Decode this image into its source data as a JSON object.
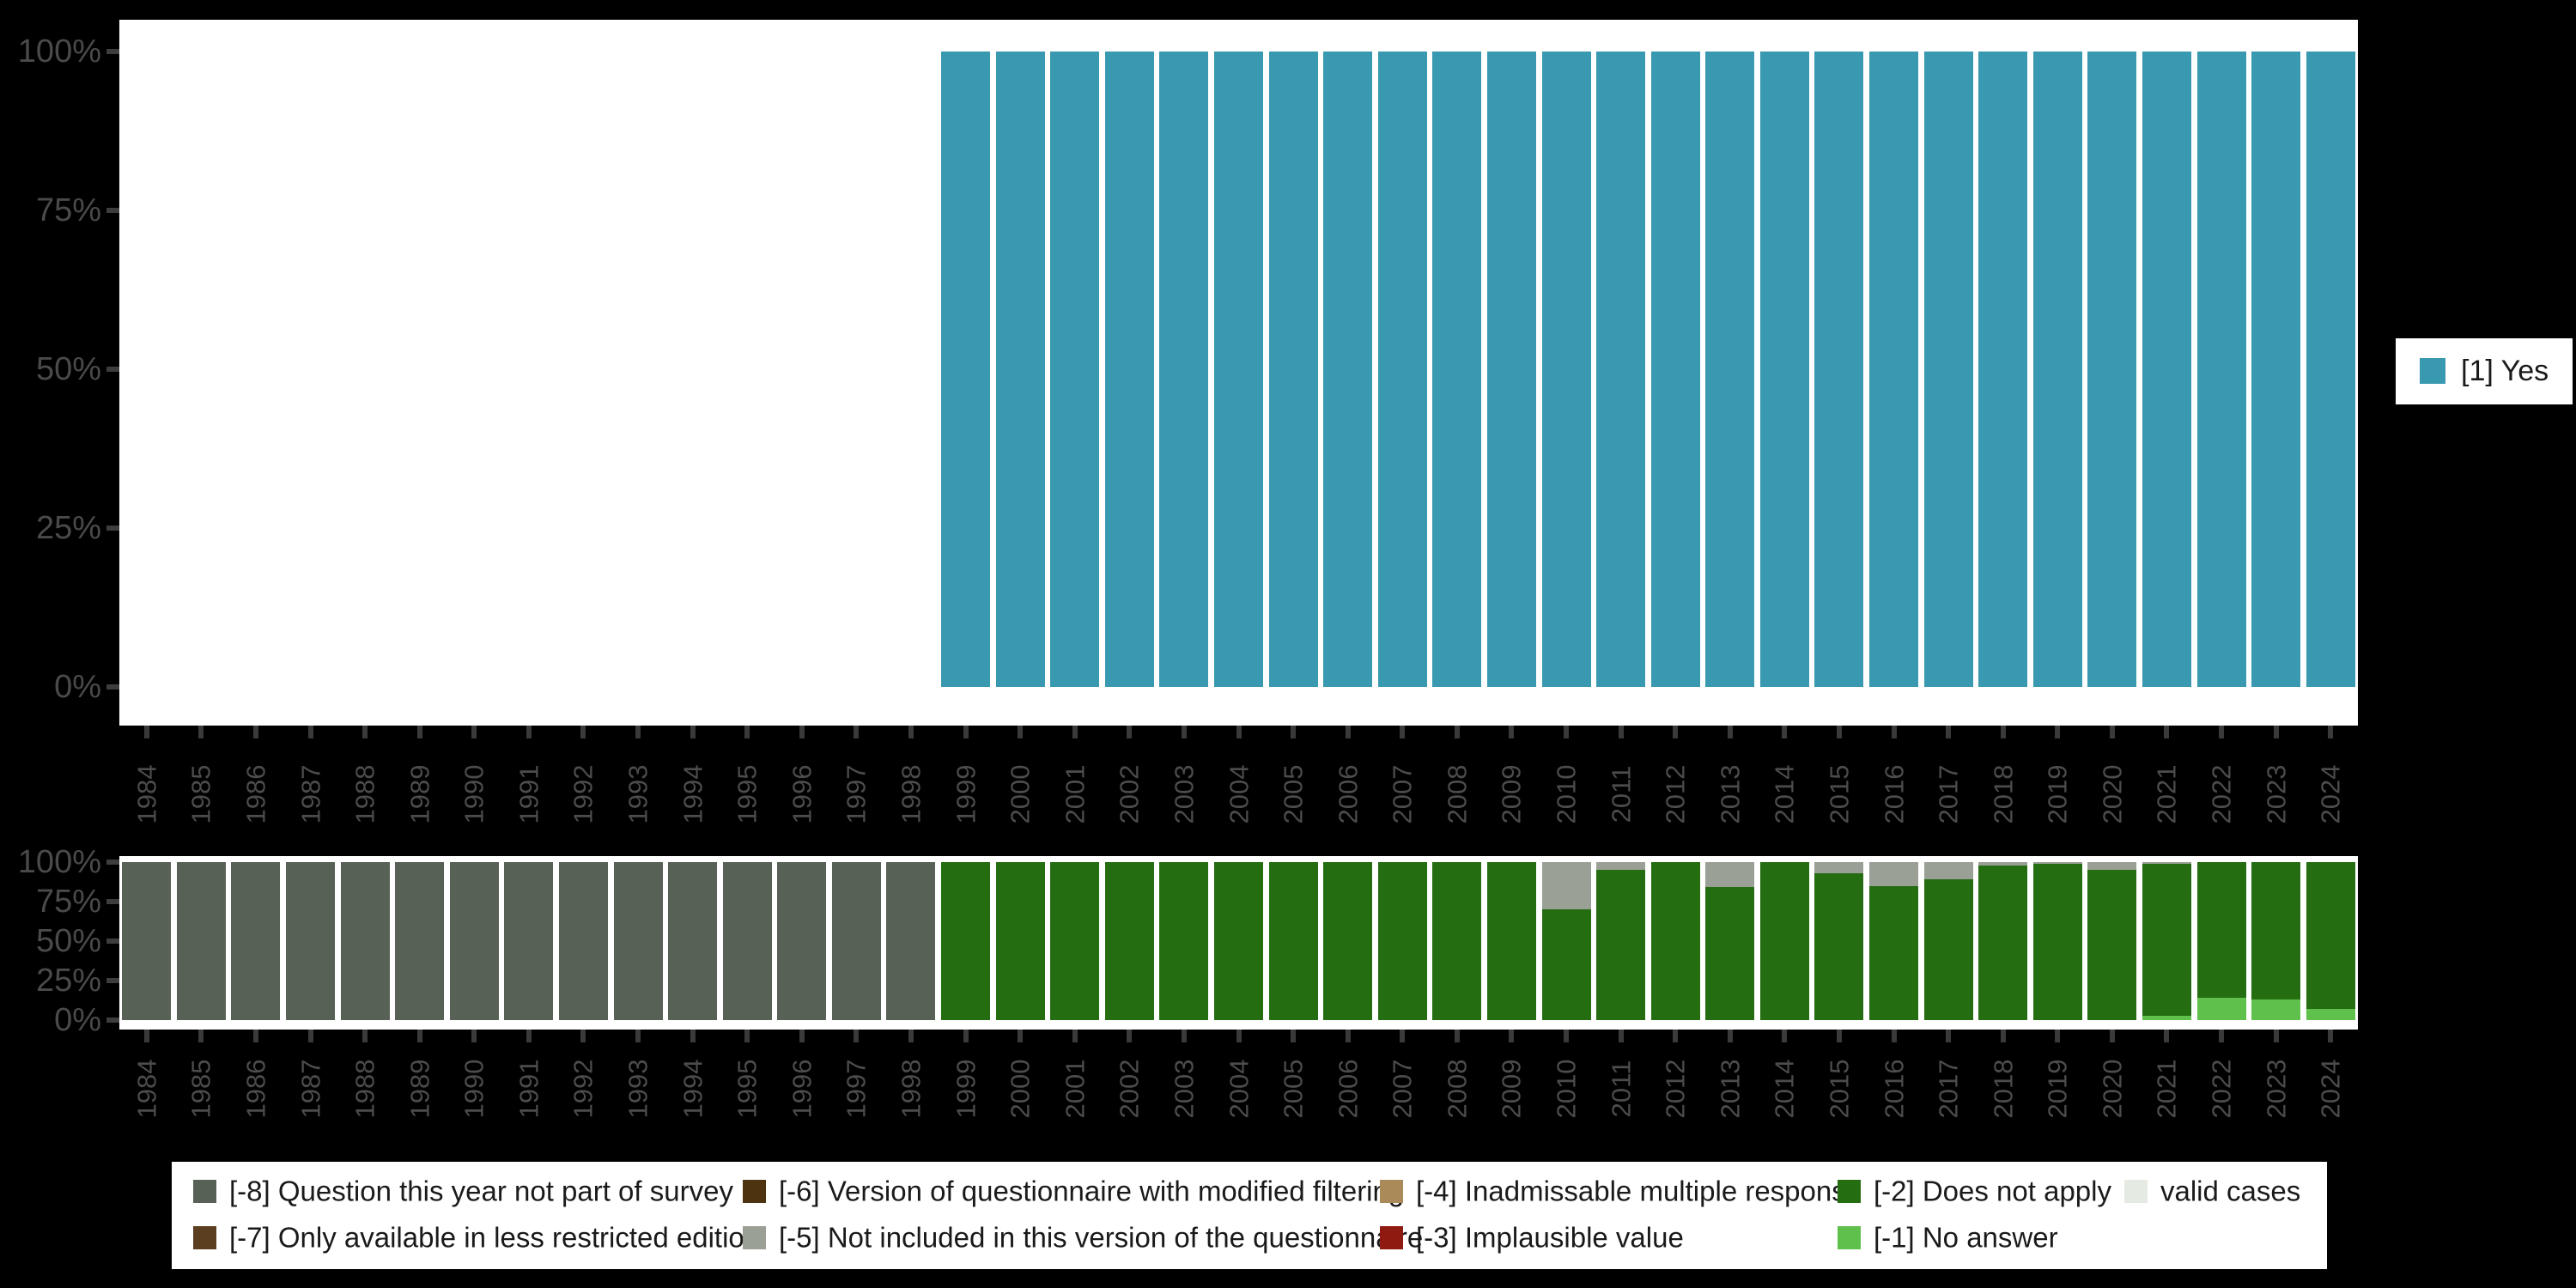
{
  "colors": {
    "background": "#000000",
    "plot_background": "#ffffff",
    "axis_text": "#4c4c4c",
    "tick_mark": "#3a3a3a",
    "yes_teal": "#3999b0",
    "neg8_gray_green": "#586155",
    "neg7_brown": "#5b3d20",
    "neg6_dark_brown": "#4e3310",
    "neg5_gray": "#9aa096",
    "neg4_tan": "#aa8a58",
    "neg3_dark_red": "#8e1a10",
    "neg2_dark_green": "#246d11",
    "neg1_light_green": "#5fc04b",
    "valid_cases_light": "#e5eae3"
  },
  "right_legend": {
    "label": "[1] Yes",
    "swatch_color": "#3999b0"
  },
  "bottom_legend": {
    "items": [
      {
        "label": "[-8] Question this year not part of survey",
        "color": "#586155"
      },
      {
        "label": "[-7] Only available in less restricted edition",
        "color": "#5b3d20"
      },
      {
        "label": "[-6] Version of questionnaire with modified filtering",
        "color": "#4e3310"
      },
      {
        "label": "[-5] Not included in this version of the questionnaire",
        "color": "#9aa096"
      },
      {
        "label": "[-4] Inadmissable multiple response",
        "color": "#aa8a58"
      },
      {
        "label": "[-3] Implausible value",
        "color": "#8e1a10"
      },
      {
        "label": "[-2] Does not apply",
        "color": "#246d11"
      },
      {
        "label": "[-1] No answer",
        "color": "#5fc04b"
      },
      {
        "label": "valid cases",
        "color": "#e5eae3"
      }
    ]
  },
  "chart_data": [
    {
      "type": "bar",
      "stacked": true,
      "title": "",
      "xlabel": "",
      "ylabel": "",
      "ylim": [
        0,
        100
      ],
      "grid": false,
      "legend_position": "right",
      "y_ticks": [
        "0%",
        "25%",
        "50%",
        "75%",
        "100%"
      ],
      "categories": [
        1984,
        1985,
        1986,
        1987,
        1988,
        1989,
        1990,
        1991,
        1992,
        1993,
        1994,
        1995,
        1996,
        1997,
        1998,
        1999,
        2000,
        2001,
        2002,
        2003,
        2004,
        2005,
        2006,
        2007,
        2008,
        2009,
        2010,
        2011,
        2012,
        2013,
        2014,
        2015,
        2016,
        2017,
        2018,
        2019,
        2020,
        2021,
        2022,
        2023,
        2024
      ],
      "series": [
        {
          "name": "[1] Yes",
          "color": "#3999b0",
          "values": [
            null,
            null,
            null,
            null,
            null,
            null,
            null,
            null,
            null,
            null,
            null,
            null,
            null,
            null,
            null,
            100,
            100,
            100,
            100,
            100,
            100,
            100,
            100,
            100,
            100,
            100,
            100,
            100,
            100,
            100,
            100,
            100,
            100,
            100,
            100,
            100,
            100,
            100,
            100,
            100,
            100
          ]
        }
      ]
    },
    {
      "type": "bar",
      "stacked": true,
      "title": "",
      "xlabel": "",
      "ylabel": "",
      "ylim": [
        0,
        100
      ],
      "grid": false,
      "legend_position": "bottom",
      "y_ticks": [
        "0%",
        "25%",
        "50%",
        "75%",
        "100%"
      ],
      "categories": [
        1984,
        1985,
        1986,
        1987,
        1988,
        1989,
        1990,
        1991,
        1992,
        1993,
        1994,
        1995,
        1996,
        1997,
        1998,
        1999,
        2000,
        2001,
        2002,
        2003,
        2004,
        2005,
        2006,
        2007,
        2008,
        2009,
        2010,
        2011,
        2012,
        2013,
        2014,
        2015,
        2016,
        2017,
        2018,
        2019,
        2020,
        2021,
        2022,
        2023,
        2024
      ],
      "series": [
        {
          "name": "[-1] No answer",
          "color": "#5fc04b",
          "values": [
            0,
            0,
            0,
            0,
            0,
            0,
            0,
            0,
            0,
            0,
            0,
            0,
            0,
            0,
            0,
            0,
            0,
            0,
            0,
            0,
            0,
            0,
            0,
            0,
            0,
            0,
            0,
            0,
            0,
            0,
            0,
            0,
            0,
            0,
            0,
            0,
            0,
            3,
            14,
            13,
            7
          ]
        },
        {
          "name": "[-2] Does not apply",
          "color": "#246d11",
          "values": [
            0,
            0,
            0,
            0,
            0,
            0,
            0,
            0,
            0,
            0,
            0,
            0,
            0,
            0,
            0,
            100,
            100,
            100,
            100,
            100,
            100,
            100,
            100,
            100,
            100,
            100,
            70,
            95,
            100,
            84,
            100,
            93,
            85,
            89,
            98,
            99,
            95,
            96,
            86,
            87,
            93
          ]
        },
        {
          "name": "[-5] Not included in this version of the questionnaire",
          "color": "#9aa096",
          "values": [
            0,
            0,
            0,
            0,
            0,
            0,
            0,
            0,
            0,
            0,
            0,
            0,
            0,
            0,
            0,
            0,
            0,
            0,
            0,
            0,
            0,
            0,
            0,
            0,
            0,
            0,
            30,
            5,
            0,
            16,
            0,
            7,
            15,
            11,
            2,
            1,
            5,
            1,
            0,
            0,
            0
          ]
        },
        {
          "name": "[-8] Question this year not part of survey",
          "color": "#586155",
          "values": [
            100,
            100,
            100,
            100,
            100,
            100,
            100,
            100,
            100,
            100,
            100,
            100,
            100,
            100,
            100,
            0,
            0,
            0,
            0,
            0,
            0,
            0,
            0,
            0,
            0,
            0,
            0,
            0,
            0,
            0,
            0,
            0,
            0,
            0,
            0,
            0,
            0,
            0,
            0,
            0,
            0
          ]
        }
      ]
    }
  ]
}
